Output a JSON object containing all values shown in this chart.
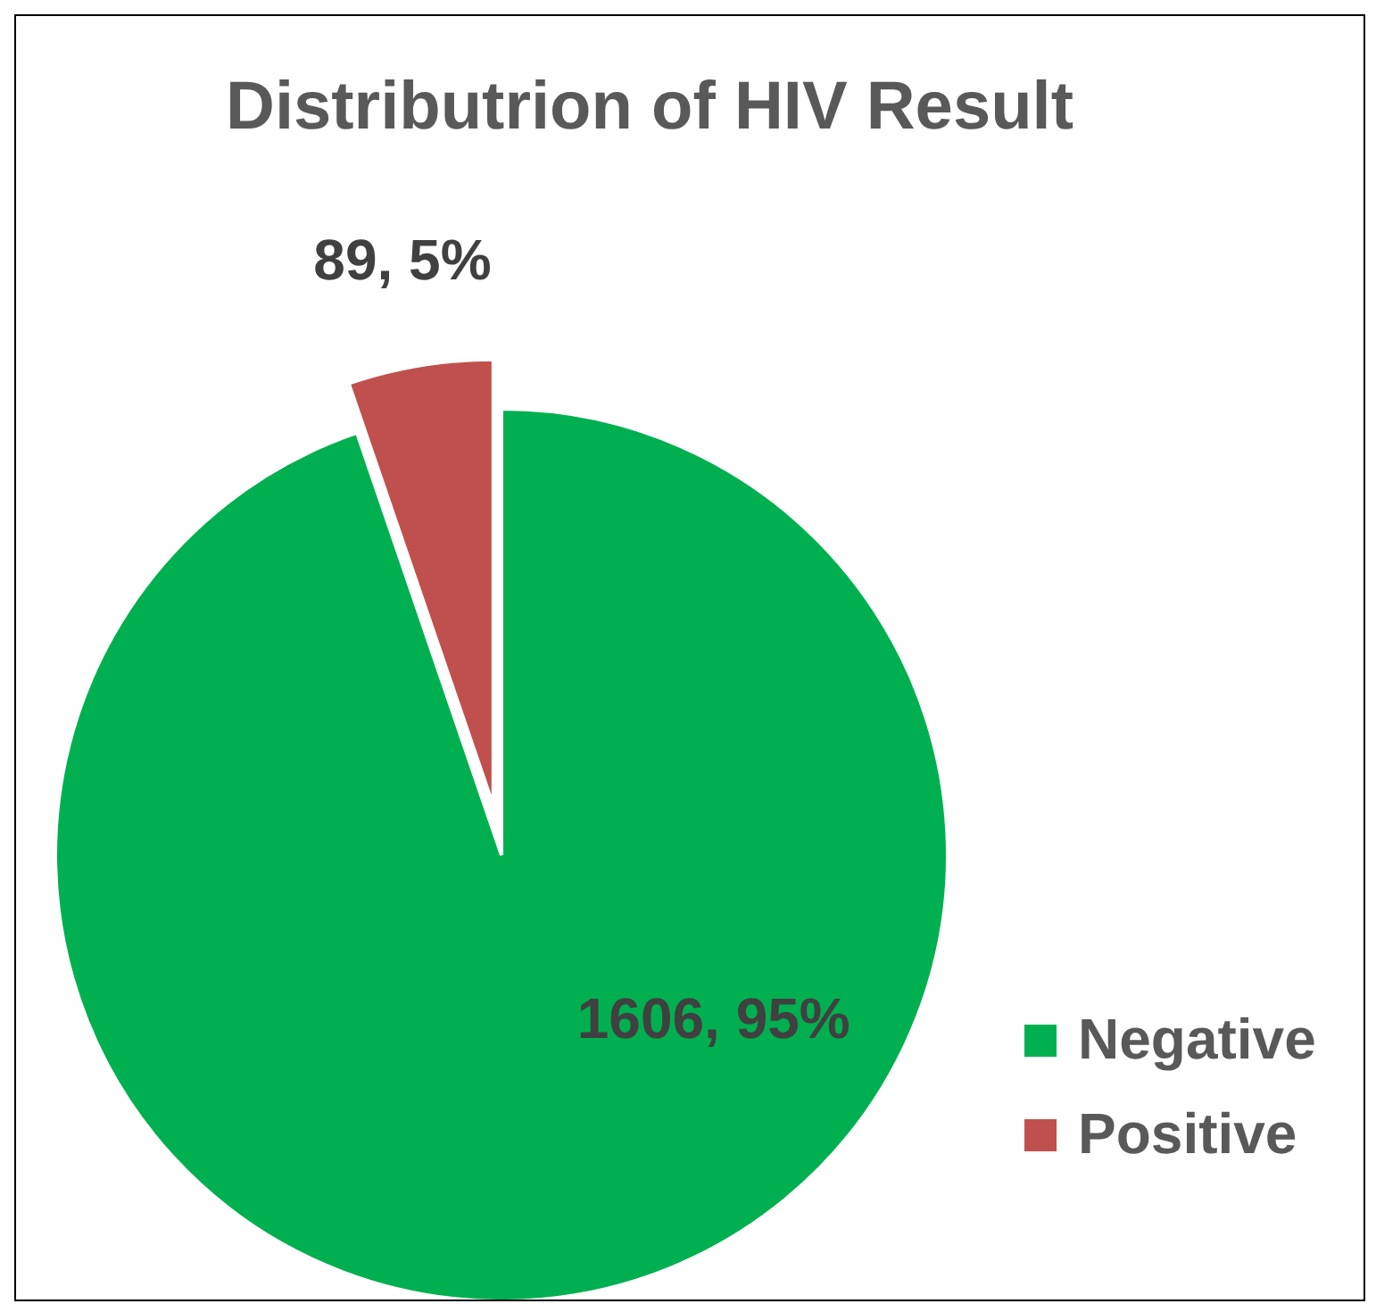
{
  "chart_data": {
    "type": "pie",
    "title": "Distributrion of HIV Result",
    "categories": [
      "Negative",
      "Positive"
    ],
    "values": [
      1606,
      89
    ],
    "colors": [
      "#00b050",
      "#c0504d"
    ],
    "value_labels": [
      "1606, 95%",
      "89, 5%"
    ],
    "legend": "right"
  }
}
